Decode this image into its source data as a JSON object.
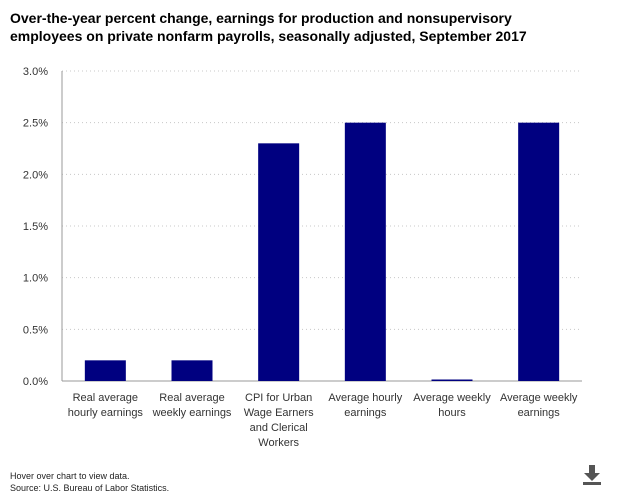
{
  "header": {
    "title_line1": "Over-the-year percent change, earnings for production and nonsupervisory",
    "title_line2": "employees on private nonfarm payrolls, seasonally adjusted, September 2017"
  },
  "chart_data": {
    "type": "bar",
    "title": "Over-the-year percent change, earnings for production and nonsupervisory employees on private nonfarm payrolls, seasonally adjusted, September 2017",
    "categories": [
      [
        "Real average",
        "hourly earnings"
      ],
      [
        "Real average",
        "weekly earnings"
      ],
      [
        "CPI for Urban",
        "Wage Earners",
        "and Clerical",
        "Workers"
      ],
      [
        "Average hourly",
        "earnings"
      ],
      [
        "Average weekly",
        "hours"
      ],
      [
        "Average weekly",
        "earnings"
      ]
    ],
    "values": [
      0.2,
      0.2,
      2.3,
      2.5,
      0.0,
      2.5
    ],
    "ylim": [
      0,
      3.0
    ],
    "yticks": [
      0.0,
      0.5,
      1.0,
      1.5,
      2.0,
      2.5,
      3.0
    ],
    "ytick_labels": [
      "0.0%",
      "0.5%",
      "1.0%",
      "1.5%",
      "2.0%",
      "2.5%",
      "3.0%"
    ],
    "xlabel": "",
    "ylabel": "",
    "grid": true,
    "bar_color": "#000080"
  },
  "footer": {
    "hover_note": "Hover over chart to view data.",
    "source": "Source: U.S. Bureau of Labor Statistics."
  },
  "icons": {
    "download": "download-icon"
  }
}
